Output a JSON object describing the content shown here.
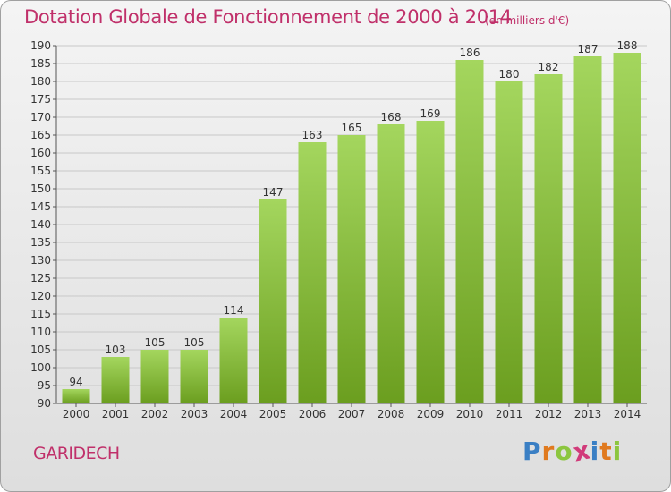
{
  "header": {
    "title": "Dotation Globale de Fonctionnement de 2000 à 2014",
    "subtitle": "(en milliers d'€)"
  },
  "footer": {
    "commune": "GARIDECH",
    "brand": "Proxiti",
    "brand_letters": [
      {
        "char": "P",
        "color": "#3a7fc4"
      },
      {
        "char": "r",
        "color": "#e07a1f"
      },
      {
        "char": "o",
        "color": "#8cc63f"
      },
      {
        "char": "x",
        "color": "#d13b7a"
      },
      {
        "char": "i",
        "color": "#3a7fc4"
      },
      {
        "char": "t",
        "color": "#e07a1f"
      },
      {
        "char": "i",
        "color": "#8cc63f"
      }
    ]
  },
  "colors": {
    "bar_light": "#a4d65e",
    "bar_dark": "#6b9e1f",
    "title": "#c0306a",
    "grid": "#c8c8c8"
  },
  "chart_data": {
    "type": "bar",
    "title": "Dotation Globale de Fonctionnement de 2000 à 2014",
    "subtitle": "(en milliers d'€)",
    "categories": [
      "2000",
      "2001",
      "2002",
      "2003",
      "2004",
      "2005",
      "2006",
      "2007",
      "2008",
      "2009",
      "2010",
      "2011",
      "2012",
      "2013",
      "2014"
    ],
    "values": [
      94,
      103,
      105,
      105,
      114,
      147,
      163,
      165,
      168,
      169,
      186,
      180,
      182,
      187,
      188
    ],
    "ylim": [
      90,
      190
    ],
    "ytick_step": 5,
    "xlabel": "",
    "ylabel": "",
    "grid": true
  }
}
